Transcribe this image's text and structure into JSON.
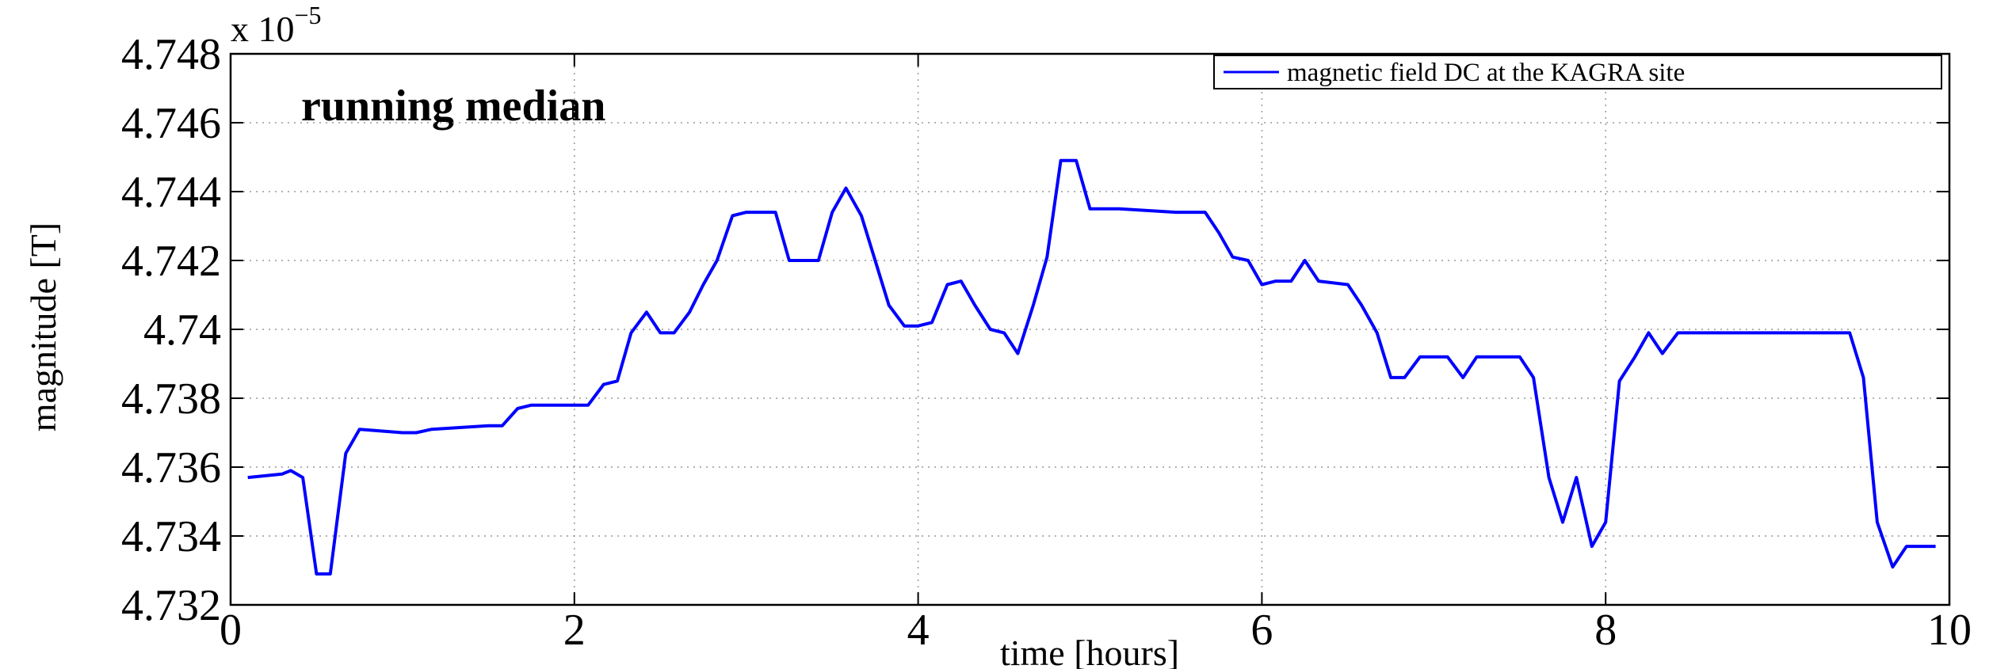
{
  "chart_data": {
    "type": "line",
    "annotation": "running median",
    "x_label": "time [hours]",
    "y_label": "magnitude [T]",
    "y_multiplier": {
      "base": "x 10",
      "exponent": "−5"
    },
    "x": [
      0.1,
      0.3,
      0.35,
      0.42,
      0.5,
      0.58,
      0.67,
      0.75,
      1.0,
      1.08,
      1.17,
      1.5,
      1.58,
      1.67,
      1.75,
      1.92,
      2.0,
      2.08,
      2.17,
      2.25,
      2.33,
      2.42,
      2.5,
      2.58,
      2.67,
      2.75,
      2.83,
      2.92,
      3.0,
      3.08,
      3.17,
      3.25,
      3.33,
      3.42,
      3.5,
      3.58,
      3.67,
      3.75,
      3.83,
      3.92,
      4.0,
      4.08,
      4.17,
      4.25,
      4.33,
      4.42,
      4.5,
      4.58,
      4.67,
      4.75,
      4.83,
      4.92,
      5.0,
      5.17,
      5.5,
      5.58,
      5.67,
      5.75,
      5.83,
      5.92,
      6.0,
      6.08,
      6.17,
      6.25,
      6.33,
      6.5,
      6.58,
      6.67,
      6.75,
      6.83,
      6.92,
      7.0,
      7.08,
      7.17,
      7.25,
      7.33,
      7.5,
      7.58,
      7.67,
      7.75,
      7.83,
      7.92,
      8.0,
      8.08,
      8.17,
      8.25,
      8.33,
      8.42,
      8.5,
      8.75,
      9.0,
      9.42,
      9.5,
      9.58,
      9.67,
      9.75,
      9.92
    ],
    "series": [
      {
        "name": "magnetic field DC at the KAGRA site",
        "color": "#0000ff",
        "values": [
          4.7357,
          4.7358,
          4.7359,
          4.7357,
          4.7329,
          4.7329,
          4.7364,
          4.7371,
          4.737,
          4.737,
          4.7371,
          4.7372,
          4.7372,
          4.7377,
          4.7378,
          4.7378,
          4.7378,
          4.7378,
          4.7384,
          4.7385,
          4.7399,
          4.7405,
          4.7399,
          4.7399,
          4.7405,
          4.7413,
          4.742,
          4.7433,
          4.7434,
          4.7434,
          4.7434,
          4.742,
          4.742,
          4.742,
          4.7434,
          4.7441,
          4.7433,
          4.742,
          4.7407,
          4.7401,
          4.7401,
          4.7402,
          4.7413,
          4.7414,
          4.7407,
          4.74,
          4.7399,
          4.7393,
          4.7407,
          4.7421,
          4.7449,
          4.7449,
          4.7435,
          4.7435,
          4.7434,
          4.7434,
          4.7434,
          4.7428,
          4.7421,
          4.742,
          4.7413,
          4.7414,
          4.7414,
          4.742,
          4.7414,
          4.7413,
          4.7407,
          4.7399,
          4.7386,
          4.7386,
          4.7392,
          4.7392,
          4.7392,
          4.7386,
          4.7392,
          4.7392,
          4.7392,
          4.7386,
          4.7357,
          4.7344,
          4.7357,
          4.7337,
          4.7344,
          4.7385,
          4.7392,
          4.7399,
          4.7393,
          4.7399,
          4.7399,
          4.7399,
          4.7399,
          4.7399,
          4.7386,
          4.7344,
          4.7331,
          4.7337,
          4.7337
        ]
      }
    ],
    "xlim": [
      0,
      10
    ],
    "xticks": [
      0,
      2,
      4,
      6,
      8,
      10
    ],
    "ylim": [
      4.732,
      4.748
    ],
    "yticks": [
      4.732,
      4.734,
      4.736,
      4.738,
      4.74,
      4.742,
      4.744,
      4.746,
      4.748
    ],
    "grid": true,
    "legend": "upper right"
  }
}
